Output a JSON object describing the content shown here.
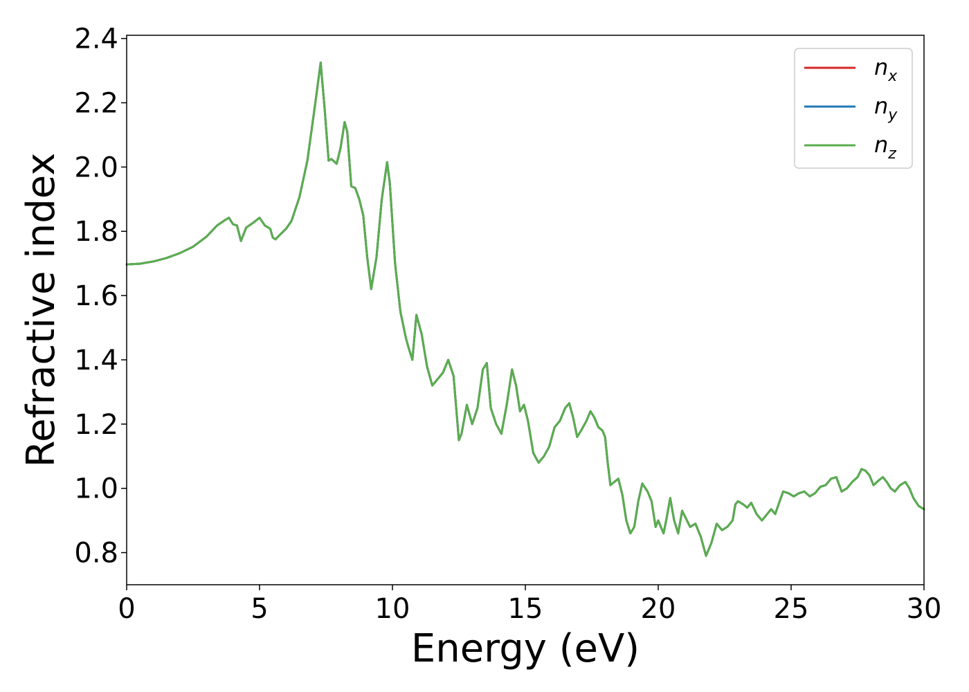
{
  "chart_data": {
    "type": "line",
    "title": "",
    "xlabel": "Energy (eV)",
    "ylabel": "Refractive index",
    "xlim": [
      0,
      30
    ],
    "ylim": [
      0.7,
      2.41
    ],
    "xticks": [
      0,
      5,
      10,
      15,
      20,
      25,
      30
    ],
    "xtick_labels": [
      "0",
      "5",
      "10",
      "15",
      "20",
      "25",
      "30"
    ],
    "yticks": [
      0.8,
      1.0,
      1.2,
      1.4,
      1.6,
      1.8,
      2.0,
      2.2,
      2.4
    ],
    "ytick_labels": [
      "0.8",
      "1.0",
      "1.2",
      "1.4",
      "1.6",
      "1.8",
      "2.0",
      "2.2",
      "2.4"
    ],
    "grid": false,
    "legend_position": "top-right",
    "x": [
      0,
      0.5,
      1,
      1.5,
      2,
      2.5,
      3,
      3.4,
      3.7,
      3.85,
      4,
      4.15,
      4.3,
      4.5,
      4.75,
      5.0,
      5.2,
      5.4,
      5.5,
      5.6,
      5.8,
      6.0,
      6.2,
      6.5,
      6.8,
      7.1,
      7.3,
      7.45,
      7.6,
      7.7,
      7.8,
      7.9,
      8.05,
      8.2,
      8.3,
      8.45,
      8.6,
      8.75,
      8.9,
      9.05,
      9.2,
      9.4,
      9.6,
      9.8,
      9.9,
      10.1,
      10.3,
      10.5,
      10.6,
      10.75,
      10.9,
      11.1,
      11.3,
      11.5,
      11.7,
      11.9,
      12.1,
      12.3,
      12.5,
      12.6,
      12.8,
      13.0,
      13.2,
      13.4,
      13.55,
      13.7,
      13.9,
      14.1,
      14.3,
      14.5,
      14.65,
      14.8,
      14.95,
      15.1,
      15.3,
      15.5,
      15.7,
      15.9,
      16.1,
      16.3,
      16.5,
      16.65,
      16.8,
      16.95,
      17.1,
      17.3,
      17.45,
      17.6,
      17.75,
      17.9,
      18.0,
      18.1,
      18.2,
      18.35,
      18.5,
      18.65,
      18.8,
      18.95,
      19.1,
      19.25,
      19.4,
      19.6,
      19.75,
      19.9,
      20.0,
      20.1,
      20.2,
      20.3,
      20.45,
      20.6,
      20.75,
      20.9,
      21.05,
      21.2,
      21.4,
      21.6,
      21.8,
      22.0,
      22.2,
      22.4,
      22.6,
      22.8,
      22.9,
      23.0,
      23.2,
      23.35,
      23.5,
      23.7,
      23.9,
      24.1,
      24.25,
      24.4,
      24.55,
      24.7,
      24.9,
      25.1,
      25.3,
      25.5,
      25.7,
      25.9,
      26.1,
      26.3,
      26.5,
      26.7,
      26.9,
      27.1,
      27.3,
      27.5,
      27.65,
      27.8,
      27.95,
      28.1,
      28.3,
      28.45,
      28.6,
      28.75,
      28.9,
      29.1,
      29.3,
      29.45,
      29.6,
      29.8,
      30.0
    ],
    "series": [
      {
        "name": "n_x",
        "label_base": "n",
        "label_sub": "x",
        "color": "#d62728",
        "values": [
          1.697,
          1.699,
          1.706,
          1.717,
          1.732,
          1.752,
          1.783,
          1.818,
          1.835,
          1.842,
          1.822,
          1.818,
          1.77,
          1.812,
          1.826,
          1.842,
          1.818,
          1.808,
          1.78,
          1.775,
          1.792,
          1.808,
          1.832,
          1.906,
          2.02,
          2.2,
          2.325,
          2.18,
          2.02,
          2.025,
          2.018,
          2.01,
          2.06,
          2.14,
          2.11,
          1.94,
          1.935,
          1.9,
          1.85,
          1.72,
          1.62,
          1.72,
          1.9,
          2.015,
          1.95,
          1.7,
          1.55,
          1.47,
          1.44,
          1.4,
          1.54,
          1.48,
          1.38,
          1.32,
          1.34,
          1.36,
          1.4,
          1.35,
          1.15,
          1.17,
          1.26,
          1.2,
          1.25,
          1.37,
          1.39,
          1.25,
          1.2,
          1.17,
          1.26,
          1.37,
          1.32,
          1.24,
          1.26,
          1.21,
          1.11,
          1.08,
          1.1,
          1.13,
          1.19,
          1.21,
          1.25,
          1.265,
          1.22,
          1.16,
          1.18,
          1.21,
          1.24,
          1.22,
          1.19,
          1.18,
          1.16,
          1.08,
          1.01,
          1.02,
          1.03,
          0.98,
          0.9,
          0.86,
          0.88,
          0.96,
          1.015,
          0.99,
          0.96,
          0.88,
          0.9,
          0.88,
          0.86,
          0.9,
          0.97,
          0.9,
          0.86,
          0.93,
          0.905,
          0.88,
          0.89,
          0.85,
          0.79,
          0.83,
          0.89,
          0.87,
          0.88,
          0.9,
          0.95,
          0.96,
          0.95,
          0.94,
          0.955,
          0.92,
          0.9,
          0.92,
          0.935,
          0.92,
          0.955,
          0.99,
          0.985,
          0.975,
          0.985,
          0.99,
          0.975,
          0.985,
          1.005,
          1.01,
          1.03,
          1.035,
          0.99,
          1.0,
          1.02,
          1.035,
          1.06,
          1.055,
          1.04,
          1.01,
          1.025,
          1.035,
          1.02,
          1.0,
          0.99,
          1.01,
          1.02,
          1.0,
          0.97,
          0.945,
          0.935
        ]
      },
      {
        "name": "n_y",
        "label_base": "n",
        "label_sub": "y",
        "color": "#1f77b4",
        "values": [
          1.697,
          1.699,
          1.706,
          1.717,
          1.732,
          1.752,
          1.783,
          1.818,
          1.835,
          1.842,
          1.822,
          1.818,
          1.77,
          1.812,
          1.826,
          1.842,
          1.818,
          1.808,
          1.78,
          1.775,
          1.792,
          1.808,
          1.832,
          1.906,
          2.02,
          2.2,
          2.325,
          2.18,
          2.02,
          2.025,
          2.018,
          2.01,
          2.06,
          2.14,
          2.11,
          1.94,
          1.935,
          1.9,
          1.85,
          1.72,
          1.62,
          1.72,
          1.9,
          2.015,
          1.95,
          1.7,
          1.55,
          1.47,
          1.44,
          1.4,
          1.54,
          1.48,
          1.38,
          1.32,
          1.34,
          1.36,
          1.4,
          1.35,
          1.15,
          1.17,
          1.26,
          1.2,
          1.25,
          1.37,
          1.39,
          1.25,
          1.2,
          1.17,
          1.26,
          1.37,
          1.32,
          1.24,
          1.26,
          1.21,
          1.11,
          1.08,
          1.1,
          1.13,
          1.19,
          1.21,
          1.25,
          1.265,
          1.22,
          1.16,
          1.18,
          1.21,
          1.24,
          1.22,
          1.19,
          1.18,
          1.16,
          1.08,
          1.01,
          1.02,
          1.03,
          0.98,
          0.9,
          0.86,
          0.88,
          0.96,
          1.015,
          0.99,
          0.96,
          0.88,
          0.9,
          0.88,
          0.86,
          0.9,
          0.97,
          0.9,
          0.86,
          0.93,
          0.905,
          0.88,
          0.89,
          0.85,
          0.79,
          0.83,
          0.89,
          0.87,
          0.88,
          0.9,
          0.95,
          0.96,
          0.95,
          0.94,
          0.955,
          0.92,
          0.9,
          0.92,
          0.935,
          0.92,
          0.955,
          0.99,
          0.985,
          0.975,
          0.985,
          0.99,
          0.975,
          0.985,
          1.005,
          1.01,
          1.03,
          1.035,
          0.99,
          1.0,
          1.02,
          1.035,
          1.06,
          1.055,
          1.04,
          1.01,
          1.025,
          1.035,
          1.02,
          1.0,
          0.99,
          1.01,
          1.02,
          1.0,
          0.97,
          0.945,
          0.935
        ]
      },
      {
        "name": "n_z",
        "label_base": "n",
        "label_sub": "z",
        "color": "#5aad4e",
        "values": [
          1.697,
          1.699,
          1.706,
          1.717,
          1.732,
          1.752,
          1.783,
          1.818,
          1.835,
          1.842,
          1.822,
          1.818,
          1.77,
          1.812,
          1.826,
          1.842,
          1.818,
          1.808,
          1.78,
          1.775,
          1.792,
          1.808,
          1.832,
          1.906,
          2.02,
          2.2,
          2.325,
          2.18,
          2.02,
          2.025,
          2.018,
          2.01,
          2.06,
          2.14,
          2.11,
          1.94,
          1.935,
          1.9,
          1.85,
          1.72,
          1.62,
          1.72,
          1.9,
          2.015,
          1.95,
          1.7,
          1.55,
          1.47,
          1.44,
          1.4,
          1.54,
          1.48,
          1.38,
          1.32,
          1.34,
          1.36,
          1.4,
          1.35,
          1.15,
          1.17,
          1.26,
          1.2,
          1.25,
          1.37,
          1.39,
          1.25,
          1.2,
          1.17,
          1.26,
          1.37,
          1.32,
          1.24,
          1.26,
          1.21,
          1.11,
          1.08,
          1.1,
          1.13,
          1.19,
          1.21,
          1.25,
          1.265,
          1.22,
          1.16,
          1.18,
          1.21,
          1.24,
          1.22,
          1.19,
          1.18,
          1.16,
          1.08,
          1.01,
          1.02,
          1.03,
          0.98,
          0.9,
          0.86,
          0.88,
          0.96,
          1.015,
          0.99,
          0.96,
          0.88,
          0.9,
          0.88,
          0.86,
          0.9,
          0.97,
          0.9,
          0.86,
          0.93,
          0.905,
          0.88,
          0.89,
          0.85,
          0.79,
          0.83,
          0.89,
          0.87,
          0.88,
          0.9,
          0.95,
          0.96,
          0.95,
          0.94,
          0.955,
          0.92,
          0.9,
          0.92,
          0.935,
          0.92,
          0.955,
          0.99,
          0.985,
          0.975,
          0.985,
          0.99,
          0.975,
          0.985,
          1.005,
          1.01,
          1.03,
          1.035,
          0.99,
          1.0,
          1.02,
          1.035,
          1.06,
          1.055,
          1.04,
          1.01,
          1.025,
          1.035,
          1.02,
          1.0,
          0.99,
          1.01,
          1.02,
          1.0,
          0.97,
          0.945,
          0.935
        ]
      }
    ]
  }
}
